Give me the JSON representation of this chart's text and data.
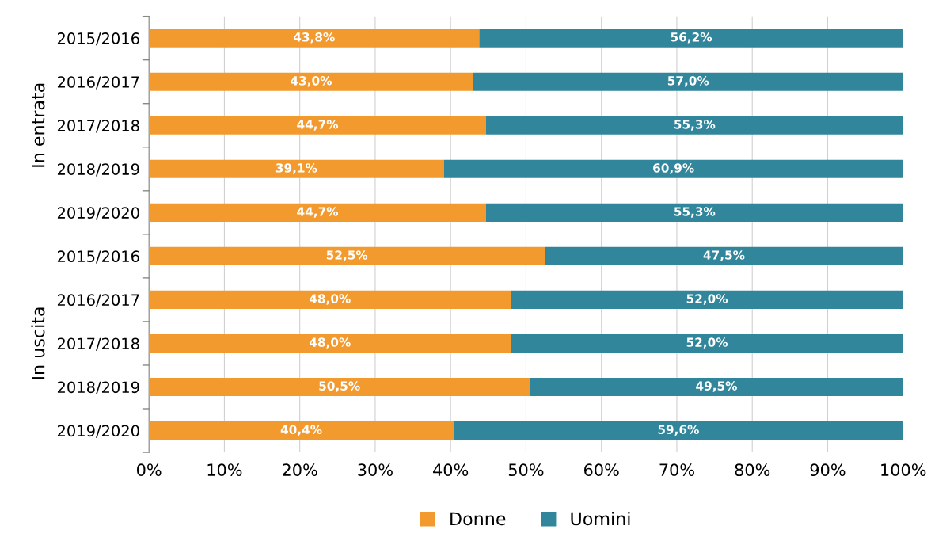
{
  "chart_data": {
    "type": "bar",
    "orientation": "horizontal",
    "stacked": true,
    "categories": [
      "2015/2016",
      "2016/2017",
      "2017/2018",
      "2018/2019",
      "2019/2020",
      "2015/2016",
      "2016/2017",
      "2017/2018",
      "2018/2019",
      "2019/2020"
    ],
    "series": [
      {
        "name": "Donne",
        "color": "#f39a2e",
        "values": [
          43.8,
          43.0,
          44.7,
          39.1,
          44.7,
          52.5,
          48.0,
          48.0,
          50.5,
          40.4
        ],
        "value_labels": [
          "43,8%",
          "43,0%",
          "44,7%",
          "39,1%",
          "44,7%",
          "52,5%",
          "48,0%",
          "48,0%",
          "50,5%",
          "40,4%"
        ]
      },
      {
        "name": "Uomini",
        "color": "#31869b",
        "values": [
          56.2,
          57.0,
          55.3,
          60.9,
          55.3,
          47.5,
          52.0,
          52.0,
          49.5,
          59.6
        ],
        "value_labels": [
          "56,2%",
          "57,0%",
          "55,3%",
          "60,9%",
          "55,3%",
          "47,5%",
          "52,0%",
          "52,0%",
          "49,5%",
          "59,6%"
        ]
      }
    ],
    "xlim": [
      0,
      100
    ],
    "xticks": [
      {
        "value": 0,
        "label": "0%"
      },
      {
        "value": 10,
        "label": "10%"
      },
      {
        "value": 20,
        "label": "20%"
      },
      {
        "value": 30,
        "label": "30%"
      },
      {
        "value": 40,
        "label": "40%"
      },
      {
        "value": 50,
        "label": "50%"
      },
      {
        "value": 60,
        "label": "60%"
      },
      {
        "value": 70,
        "label": "70%"
      },
      {
        "value": 80,
        "label": "80%"
      },
      {
        "value": 90,
        "label": "90%"
      },
      {
        "value": 100,
        "label": "100%"
      }
    ],
    "grid": "x",
    "legend": "bottom",
    "annotations": [
      "In entrata",
      "In uscita"
    ]
  }
}
